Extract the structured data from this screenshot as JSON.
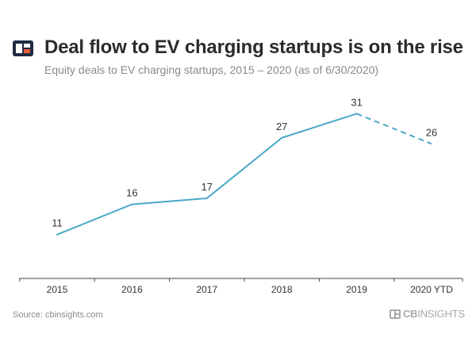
{
  "header": {
    "title": "Deal flow to EV charging startups is on the rise",
    "subtitle": "Equity deals to EV charging startups, 2015 – 2020 (as of 6/30/2020)"
  },
  "footer": {
    "source": "Source: cbinsights.com",
    "brand_bold": "CB",
    "brand_rest": "INSIGHTS"
  },
  "colors": {
    "line": "#4aa8c8",
    "axis": "#444444",
    "logo_dark": "#1f2a44",
    "logo_accent": "#e8613c",
    "brand": "#a9a9a9"
  },
  "chart_data": {
    "type": "line",
    "categories": [
      "2015",
      "2016",
      "2017",
      "2018",
      "2019",
      "2020 YTD"
    ],
    "values": [
      11,
      16,
      17,
      27,
      31,
      26
    ],
    "projected_from_index": 4,
    "title": "Deal flow to EV charging startups is on the rise",
    "xlabel": "",
    "ylabel": "",
    "ylim": [
      0,
      31
    ],
    "grid": false,
    "legend": "none"
  }
}
